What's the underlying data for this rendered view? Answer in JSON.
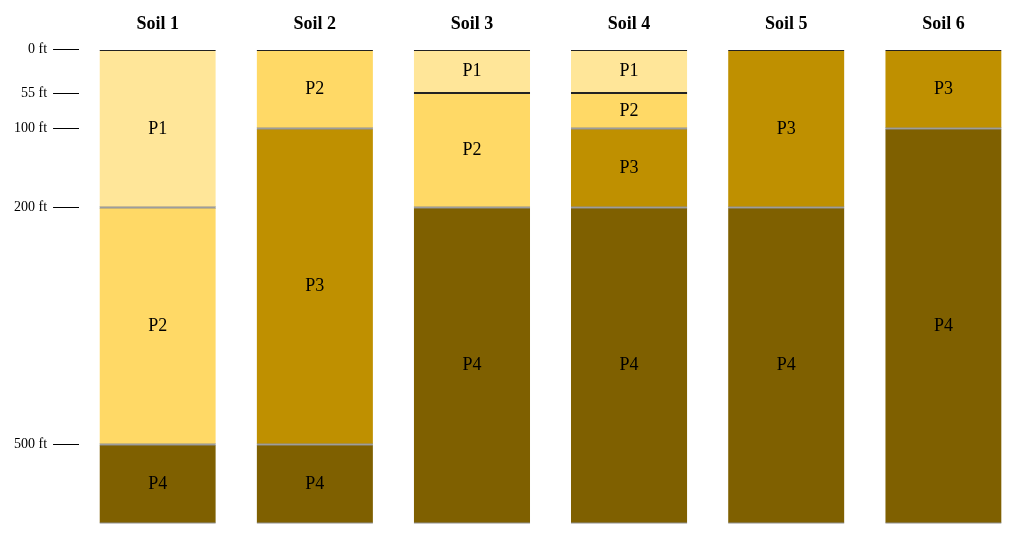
{
  "chart_data": {
    "type": "bar",
    "stacked": true,
    "legend": false,
    "grid": false,
    "categories": [
      "Soil 1",
      "Soil 2",
      "Soil 3",
      "Soil 4",
      "Soil 5",
      "Soil 6"
    ],
    "ylim": [
      600,
      0
    ],
    "yticks": [
      {
        "value": 0,
        "label": "0 ft"
      },
      {
        "value": 55,
        "label": "55 ft"
      },
      {
        "value": 100,
        "label": "100 ft"
      },
      {
        "value": 200,
        "label": "200 ft"
      },
      {
        "value": 500,
        "label": "500 ft"
      }
    ],
    "series": [
      {
        "name": "P1",
        "color": "#ffe699",
        "values": [
          200,
          null,
          55,
          55,
          null,
          null
        ]
      },
      {
        "name": "P2",
        "color": "#ffd966",
        "values": [
          300,
          100,
          145,
          45,
          null,
          null
        ]
      },
      {
        "name": "P3",
        "color": "#bf9000",
        "values": [
          null,
          400,
          null,
          100,
          200,
          100
        ]
      },
      {
        "name": "P4",
        "color": "#7f6000",
        "values": [
          100,
          100,
          400,
          400,
          400,
          500
        ]
      }
    ]
  }
}
